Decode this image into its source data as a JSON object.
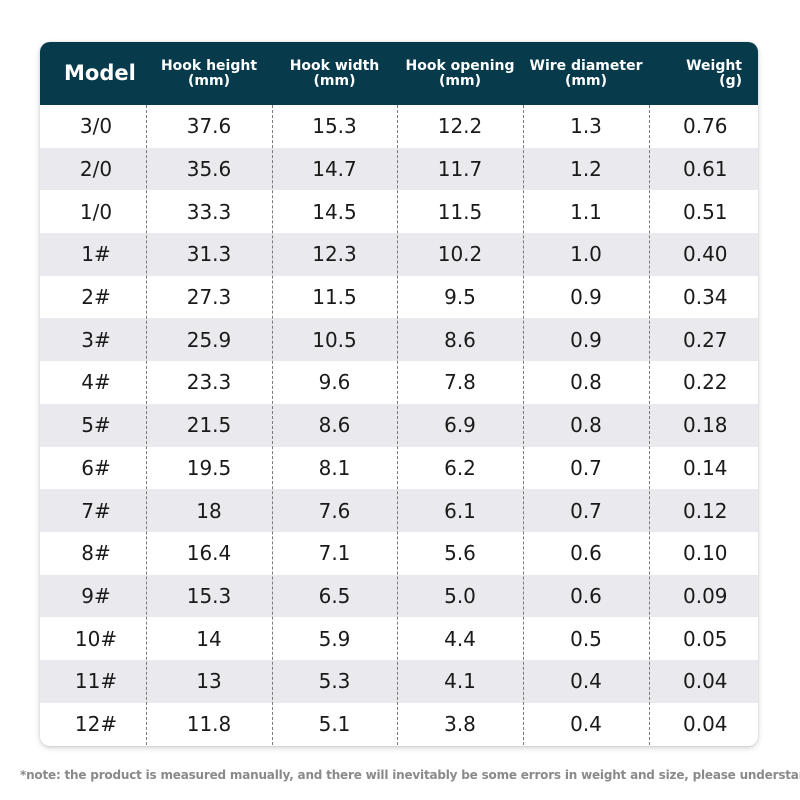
{
  "table": {
    "headers": {
      "model": "Model",
      "hook_height": "Hook height\n(mm)",
      "hook_width": "Hook width\n(mm)",
      "hook_opening": "Hook opening\n(mm)",
      "wire_diameter": "Wire diameter\n(mm)",
      "weight": "Weight\n(g)"
    },
    "rows": [
      [
        "3/0",
        "37.6",
        "15.3",
        "12.2",
        "1.3",
        "0.76"
      ],
      [
        "2/0",
        "35.6",
        "14.7",
        "11.7",
        "1.2",
        "0.61"
      ],
      [
        "1/0",
        "33.3",
        "14.5",
        "11.5",
        "1.1",
        "0.51"
      ],
      [
        "1#",
        "31.3",
        "12.3",
        "10.2",
        "1.0",
        "0.40"
      ],
      [
        "2#",
        "27.3",
        "11.5",
        "9.5",
        "0.9",
        "0.34"
      ],
      [
        "3#",
        "25.9",
        "10.5",
        "8.6",
        "0.9",
        "0.27"
      ],
      [
        "4#",
        "23.3",
        "9.6",
        "7.8",
        "0.8",
        "0.22"
      ],
      [
        "5#",
        "21.5",
        "8.6",
        "6.9",
        "0.8",
        "0.18"
      ],
      [
        "6#",
        "19.5",
        "8.1",
        "6.2",
        "0.7",
        "0.14"
      ],
      [
        "7#",
        "18",
        "7.6",
        "6.1",
        "0.7",
        "0.12"
      ],
      [
        "8#",
        "16.4",
        "7.1",
        "5.6",
        "0.6",
        "0.10"
      ],
      [
        "9#",
        "15.3",
        "6.5",
        "5.0",
        "0.6",
        "0.09"
      ],
      [
        "10#",
        "14",
        "5.9",
        "4.4",
        "0.5",
        "0.05"
      ],
      [
        "11#",
        "13",
        "5.3",
        "4.1",
        "0.4",
        "0.04"
      ],
      [
        "12#",
        "11.8",
        "5.1",
        "3.8",
        "0.4",
        "0.04"
      ]
    ]
  },
  "note": "*note: the product is measured manually, and there will inevitably be some errors in weight and size, please understand",
  "colors": {
    "header_bg": "#073a4b",
    "header_text": "#ffffff",
    "row_alt": "#e9e9ee"
  }
}
